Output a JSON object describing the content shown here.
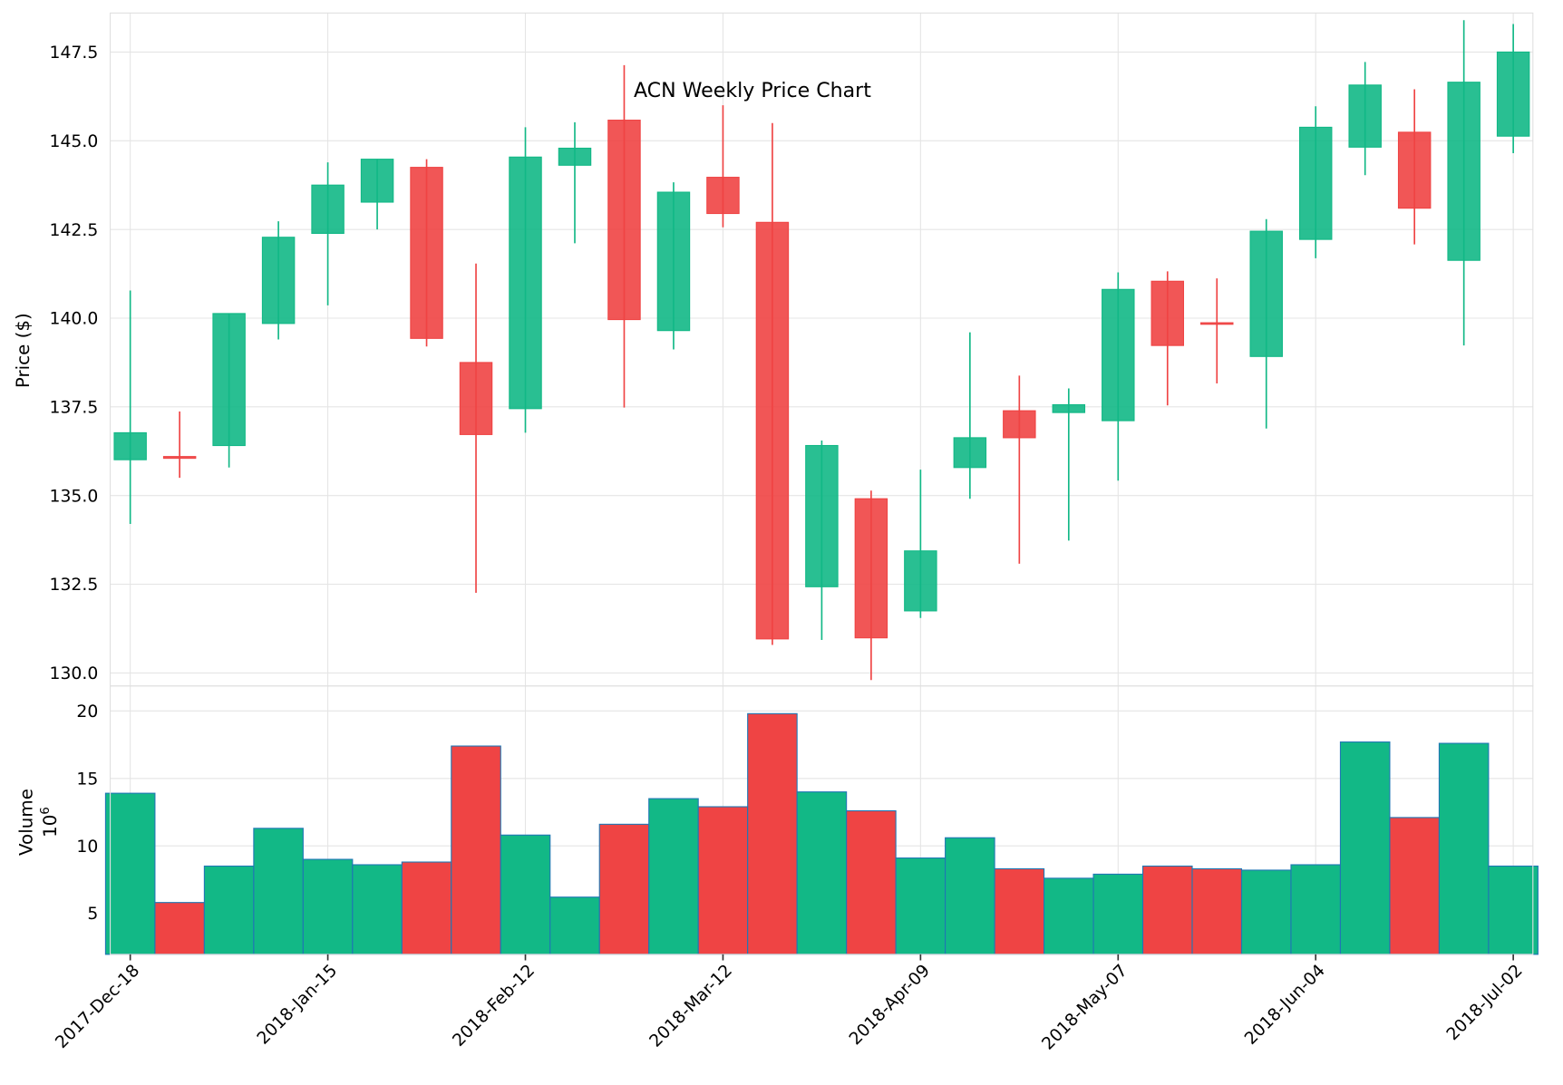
{
  "chart_data": {
    "type": "candlestick",
    "title": "ACN Weekly Price Chart",
    "ylabel": "Price ($)",
    "volume_ylabel": "Volume",
    "volume_scale_label": "10^6",
    "ylim": [
      129.5,
      148.6
    ],
    "yticks": [
      130.0,
      132.5,
      135.0,
      137.5,
      140.0,
      142.5,
      145.0,
      147.5
    ],
    "volume_ylim": [
      1.8,
      20.0
    ],
    "volume_yticks": [
      5,
      10,
      15,
      20
    ],
    "grid": true,
    "colors": {
      "up": "#12b886",
      "down": "#ef4444",
      "volume_edge": "#1f77b4",
      "grid": "#e5e5e5"
    },
    "xtick_labels": [
      "2017-Dec-18",
      "2018-Jan-15",
      "2018-Feb-12",
      "2018-Mar-12",
      "2018-Apr-09",
      "2018-May-07",
      "2018-Jun-04",
      "2018-Jul-02"
    ],
    "dates": [
      "2017-12-18",
      "2017-12-25",
      "2018-01-01",
      "2018-01-08",
      "2018-01-15",
      "2018-01-22",
      "2018-01-29",
      "2018-02-05",
      "2018-02-12",
      "2018-02-19",
      "2018-02-26",
      "2018-03-05",
      "2018-03-12",
      "2018-03-19",
      "2018-03-26",
      "2018-04-02",
      "2018-04-09",
      "2018-04-16",
      "2018-04-23",
      "2018-04-30",
      "2018-05-07",
      "2018-05-14",
      "2018-05-21",
      "2018-05-28",
      "2018-06-04",
      "2018-06-11",
      "2018-06-18",
      "2018-06-25",
      "2018-07-02"
    ],
    "open": [
      136.01,
      136.1,
      136.41,
      139.85,
      142.39,
      143.27,
      144.25,
      138.75,
      137.45,
      144.31,
      145.58,
      139.65,
      143.97,
      142.7,
      132.43,
      134.91,
      131.75,
      135.79,
      137.39,
      137.34,
      137.11,
      141.04,
      139.87,
      138.92,
      142.22,
      144.82,
      145.24,
      141.63,
      145.13
    ],
    "high": [
      140.78,
      137.37,
      140.13,
      142.73,
      144.39,
      144.48,
      144.48,
      141.54,
      145.38,
      145.52,
      147.13,
      143.83,
      146.0,
      145.5,
      136.55,
      135.14,
      135.73,
      139.6,
      138.38,
      138.02,
      141.29,
      141.32,
      141.12,
      142.79,
      145.97,
      147.22,
      146.45,
      148.4,
      148.29
    ],
    "low": [
      134.2,
      135.5,
      135.79,
      139.4,
      140.36,
      142.5,
      139.2,
      132.26,
      136.77,
      142.11,
      137.48,
      139.12,
      142.56,
      130.79,
      130.93,
      129.8,
      131.55,
      134.91,
      133.08,
      133.73,
      135.42,
      137.54,
      138.16,
      136.89,
      141.69,
      144.03,
      142.08,
      139.23,
      144.65
    ],
    "close": [
      136.77,
      136.05,
      140.13,
      142.28,
      143.75,
      144.48,
      139.43,
      136.72,
      144.54,
      144.79,
      139.96,
      143.55,
      142.95,
      130.96,
      136.41,
      130.99,
      133.44,
      136.63,
      136.63,
      137.56,
      140.81,
      139.23,
      139.83,
      142.45,
      145.38,
      146.57,
      143.1,
      146.65,
      147.5
    ],
    "volume_millions": [
      13.9,
      5.8,
      8.5,
      11.3,
      9.0,
      8.6,
      8.8,
      17.4,
      10.8,
      6.2,
      11.6,
      13.5,
      12.9,
      19.8,
      14.0,
      12.6,
      9.1,
      10.6,
      8.3,
      7.6,
      7.9,
      8.5,
      8.3,
      8.2,
      8.6,
      17.7,
      12.1,
      17.6,
      8.5
    ]
  }
}
